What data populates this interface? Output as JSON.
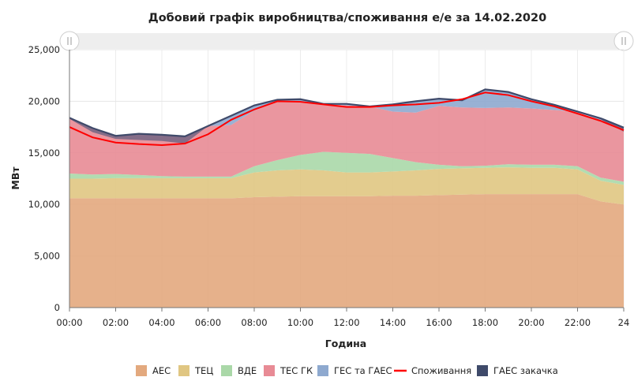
{
  "chart_data": {
    "type": "area",
    "stacked": true,
    "title": "Добовий графік виробництва/споживання е/е за 14.02.2020",
    "xlabel": "Година",
    "ylabel": "МВт",
    "ylim": [
      0,
      25000
    ],
    "yticks": [
      0,
      5000,
      10000,
      15000,
      20000,
      25000
    ],
    "ytick_labels": [
      "0",
      "5,000",
      "10,000",
      "15,000",
      "20,000",
      "25,000"
    ],
    "xlim": [
      0,
      24
    ],
    "xticks": [
      0,
      2,
      4,
      6,
      8,
      10,
      12,
      14,
      16,
      18,
      20,
      22,
      24
    ],
    "xtick_labels": [
      "00:00",
      "02:00",
      "04:00",
      "06:00",
      "08:00",
      "10:00",
      "12:00",
      "14:00",
      "16:00",
      "18:00",
      "20:00",
      "22:00",
      "24"
    ],
    "grid": true,
    "legend_position": "bottom",
    "x": [
      0,
      1,
      2,
      3,
      4,
      5,
      6,
      7,
      8,
      9,
      10,
      11,
      12,
      13,
      14,
      15,
      16,
      17,
      18,
      19,
      20,
      21,
      22,
      23,
      24
    ],
    "series": [
      {
        "name": "АЕС",
        "kind": "area",
        "color": "#e3a97e",
        "values": [
          10600,
          10600,
          10600,
          10600,
          10600,
          10600,
          10600,
          10600,
          10700,
          10750,
          10800,
          10800,
          10800,
          10800,
          10850,
          10850,
          10900,
          10950,
          11000,
          11000,
          11000,
          11000,
          11000,
          10300,
          10000
        ]
      },
      {
        "name": "ТЕЦ",
        "kind": "area",
        "color": "#e0c682",
        "values": [
          1900,
          1900,
          1950,
          1950,
          1950,
          1950,
          1950,
          1950,
          2400,
          2550,
          2600,
          2500,
          2300,
          2300,
          2350,
          2450,
          2550,
          2550,
          2550,
          2600,
          2550,
          2550,
          2400,
          2000,
          1900
        ]
      },
      {
        "name": "ВДЕ",
        "kind": "area",
        "color": "#aad8a8",
        "values": [
          500,
          400,
          400,
          300,
          200,
          150,
          150,
          150,
          600,
          1000,
          1400,
          1800,
          1900,
          1800,
          1300,
          800,
          400,
          200,
          200,
          300,
          300,
          300,
          300,
          300,
          300
        ]
      },
      {
        "name": "ТЕС ГК",
        "kind": "area",
        "color": "#e88b95",
        "values": [
          5400,
          4400,
          3700,
          4000,
          4000,
          3900,
          4900,
          5000,
          5400,
          5700,
          5200,
          4650,
          4600,
          4600,
          4500,
          4800,
          5700,
          5700,
          5600,
          5500,
          5450,
          5300,
          5300,
          5500,
          5200
        ]
      },
      {
        "name": "ГЕС та ГАЕС",
        "kind": "area",
        "color": "#8ea9cf",
        "values": [
          0,
          100,
          0,
          0,
          0,
          0,
          0,
          900,
          500,
          150,
          200,
          0,
          150,
          0,
          700,
          1100,
          700,
          700,
          1800,
          1500,
          900,
          500,
          0,
          250,
          50
        ]
      },
      {
        "name": "ГАЕС закачка",
        "kind": "area",
        "color": "#7f6a87",
        "values": [
          -100,
          -400,
          -300,
          -600,
          -600,
          -700,
          0,
          0,
          0,
          0,
          0,
          0,
          0,
          0,
          0,
          0,
          0,
          0,
          0,
          0,
          0,
          0,
          0,
          -100,
          -400
        ]
      },
      {
        "name": "Споживання",
        "kind": "line",
        "color": "#ff0000",
        "values": [
          17500,
          16500,
          16000,
          15850,
          15750,
          15900,
          16800,
          18200,
          19200,
          20000,
          19950,
          19700,
          19450,
          19450,
          19600,
          19700,
          19850,
          20200,
          20850,
          20600,
          20000,
          19500,
          18800,
          18100,
          17200
        ]
      }
    ],
    "legend": [
      {
        "name": "АЕС",
        "marker": "box",
        "color": "#e3a97e"
      },
      {
        "name": "ТЕЦ",
        "marker": "box",
        "color": "#e0c682"
      },
      {
        "name": "ВДЕ",
        "marker": "box",
        "color": "#aad8a8"
      },
      {
        "name": "ТЕС ГК",
        "marker": "box",
        "color": "#e88b95"
      },
      {
        "name": "ГЕС та ГАЕС",
        "marker": "box",
        "color": "#8ea9cf"
      },
      {
        "name": "Споживання",
        "marker": "line",
        "color": "#ff0000"
      },
      {
        "name": "ГАЕС закачка",
        "marker": "box",
        "color": "#3f4a6a"
      }
    ],
    "outline_color": "#3f4a6a"
  }
}
